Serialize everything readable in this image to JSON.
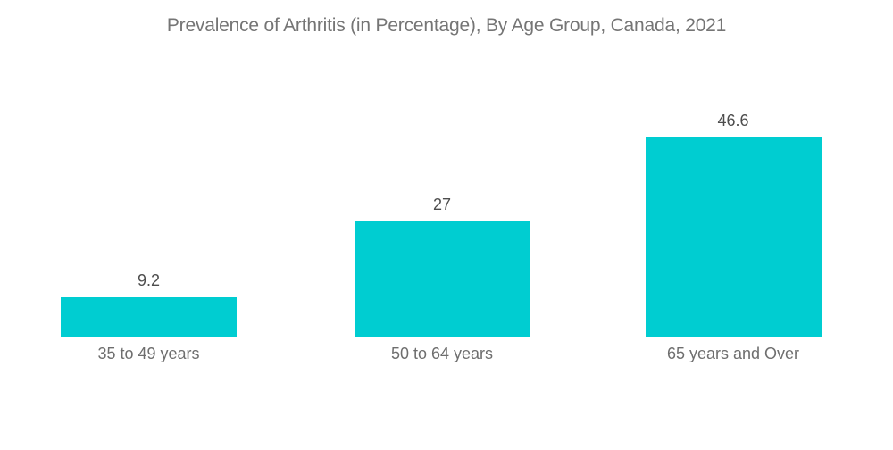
{
  "chart_data": {
    "type": "bar",
    "title": "Prevalence of Arthritis (in Percentage), By Age Group, Canada, 2021",
    "categories": [
      "35 to 49 years",
      "50 to 64 years",
      "65 years and Over"
    ],
    "values": [
      9.2,
      27,
      46.6
    ],
    "value_labels": [
      "9.2",
      "27",
      "46.6"
    ],
    "xlabel": "",
    "ylabel": "",
    "ylim": [
      0,
      50
    ],
    "grid": false,
    "legend": false,
    "colors": {
      "bar": "#00CDD1",
      "title_text": "#757575",
      "value_label_text": "#4d4d4d",
      "category_label_text": "#6e6e6e",
      "background": "#FFFFFF"
    }
  }
}
